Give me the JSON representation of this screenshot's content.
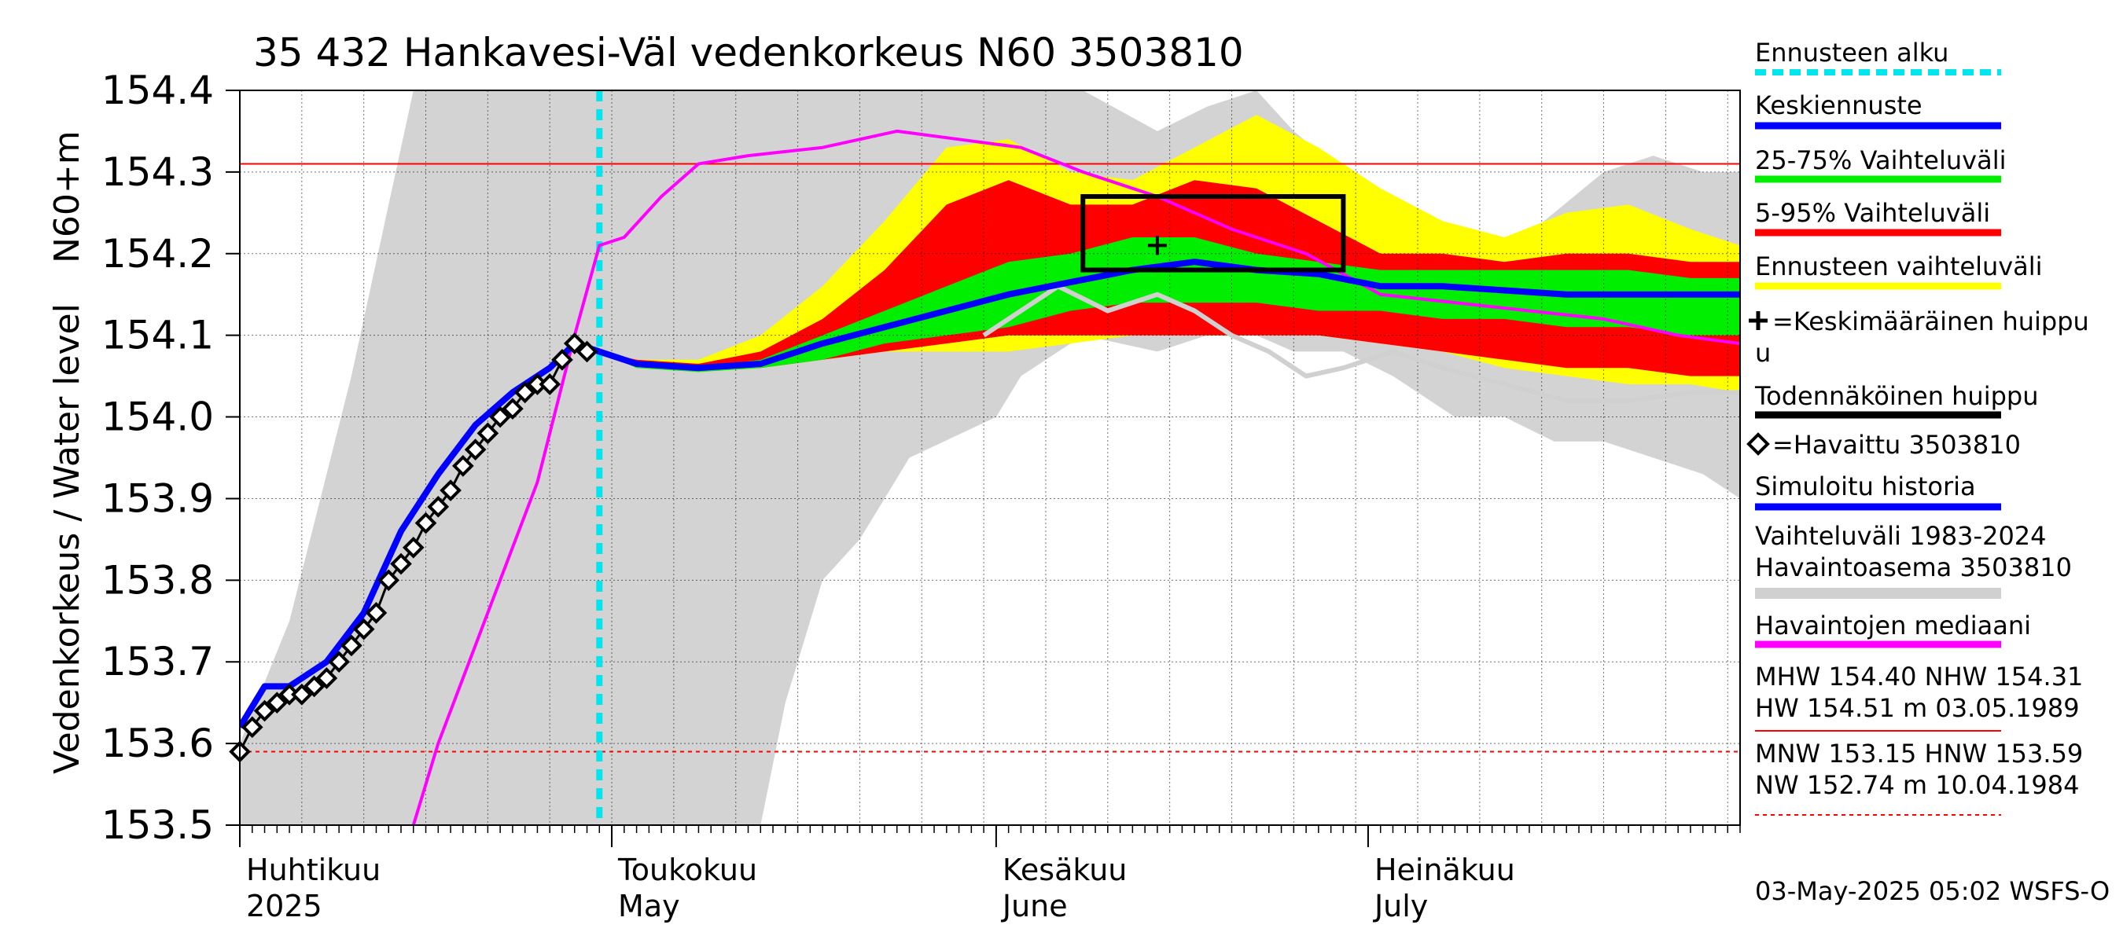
{
  "chart_data": {
    "type": "line",
    "title": "35 432 Hankavesi-Väl vedenkorkeus N60 3503810",
    "ylabel_top": "N60+m",
    "ylabel": "Vedenkorkeus / Water level",
    "ylim": [
      153.5,
      154.4
    ],
    "yticks": [
      153.5,
      153.6,
      153.7,
      153.8,
      153.9,
      154.0,
      154.1,
      154.2,
      154.3,
      154.4
    ],
    "x_start": "2025-04-01",
    "x_end": "2025-07-31",
    "forecast_start": "2025-04-30",
    "month_labels": [
      {
        "date": "2025-04-01",
        "fi": "Huhtikuu",
        "en": "2025"
      },
      {
        "date": "2025-05-01",
        "fi": "Toukokuu",
        "en": "May"
      },
      {
        "date": "2025-06-01",
        "fi": "Kesäkuu",
        "en": "June"
      },
      {
        "date": "2025-07-01",
        "fi": "Heinäkuu",
        "en": "July"
      }
    ],
    "reference_lines": {
      "MHW": 154.4,
      "NHW": 154.31,
      "HNW": 153.59
    },
    "peak_box": {
      "x0": "2025-06-08",
      "x1": "2025-06-29",
      "y0": 154.18,
      "y1": 154.27
    },
    "mean_peak": {
      "date": "2025-06-14",
      "value": 154.21
    },
    "history_band": {
      "x": [
        "2025-04-01",
        "2025-04-05",
        "2025-04-10",
        "2025-04-15",
        "2025-04-19",
        "2025-04-22",
        "2025-04-28",
        "2025-05-01",
        "2025-05-05",
        "2025-05-10",
        "2025-05-13",
        "2025-05-15",
        "2025-05-18",
        "2025-05-21",
        "2025-05-25",
        "2025-06-01",
        "2025-06-03",
        "2025-06-08",
        "2025-06-14",
        "2025-06-18",
        "2025-06-22",
        "2025-06-25",
        "2025-06-29",
        "2025-07-03",
        "2025-07-08",
        "2025-07-12",
        "2025-07-16",
        "2025-07-20",
        "2025-07-24",
        "2025-07-28",
        "2025-07-31"
      ],
      "hi": [
        153.6,
        153.75,
        154.05,
        154.4,
        154.4,
        154.4,
        154.4,
        154.4,
        154.4,
        154.4,
        154.4,
        154.4,
        154.4,
        154.4,
        154.4,
        154.4,
        154.4,
        154.4,
        154.35,
        154.38,
        154.4,
        154.35,
        154.3,
        154.26,
        154.2,
        154.2,
        154.25,
        154.3,
        154.32,
        154.3,
        154.3
      ],
      "lo": [
        153.5,
        153.5,
        153.5,
        153.5,
        153.5,
        153.5,
        153.5,
        153.5,
        153.5,
        153.5,
        153.5,
        153.65,
        153.8,
        153.85,
        153.95,
        154.0,
        154.05,
        154.1,
        154.08,
        154.1,
        154.1,
        154.08,
        154.08,
        154.05,
        154.0,
        154.0,
        153.97,
        153.97,
        153.95,
        153.93,
        153.9
      ]
    },
    "forecast_bands": {
      "x": [
        "2025-04-30",
        "2025-05-03",
        "2025-05-08",
        "2025-05-13",
        "2025-05-18",
        "2025-05-23",
        "2025-05-28",
        "2025-06-02",
        "2025-06-07",
        "2025-06-12",
        "2025-06-17",
        "2025-06-22",
        "2025-06-27",
        "2025-07-02",
        "2025-07-07",
        "2025-07-12",
        "2025-07-17",
        "2025-07-22",
        "2025-07-27",
        "2025-07-31"
      ],
      "yellow_hi": [
        154.08,
        154.07,
        154.07,
        154.1,
        154.16,
        154.24,
        154.33,
        154.34,
        154.3,
        154.29,
        154.33,
        154.37,
        154.33,
        154.28,
        154.24,
        154.22,
        154.25,
        154.26,
        154.23,
        154.21
      ],
      "yellow_lo": [
        154.08,
        154.065,
        154.055,
        154.06,
        154.07,
        154.08,
        154.08,
        154.08,
        154.09,
        154.1,
        154.1,
        154.1,
        154.1,
        154.09,
        154.08,
        154.06,
        154.05,
        154.04,
        154.04,
        154.03
      ],
      "red_hi": [
        154.08,
        154.07,
        154.065,
        154.08,
        154.12,
        154.18,
        154.26,
        154.29,
        154.26,
        154.26,
        154.29,
        154.28,
        154.24,
        154.2,
        154.2,
        154.19,
        154.2,
        154.2,
        154.19,
        154.19
      ],
      "red_lo": [
        154.08,
        154.065,
        154.06,
        154.06,
        154.07,
        154.08,
        154.09,
        154.1,
        154.1,
        154.1,
        154.1,
        154.1,
        154.1,
        154.09,
        154.08,
        154.07,
        154.06,
        154.06,
        154.05,
        154.05
      ],
      "green_hi": [
        154.08,
        154.065,
        154.06,
        154.07,
        154.1,
        154.13,
        154.16,
        154.19,
        154.2,
        154.22,
        154.22,
        154.2,
        154.19,
        154.18,
        154.18,
        154.18,
        154.18,
        154.18,
        154.17,
        154.17
      ],
      "green_lo": [
        154.08,
        154.06,
        154.055,
        154.06,
        154.07,
        154.09,
        154.1,
        154.11,
        154.13,
        154.14,
        154.14,
        154.14,
        154.13,
        154.13,
        154.12,
        154.12,
        154.11,
        154.11,
        154.1,
        154.1
      ]
    },
    "series": [
      {
        "name": "Keskiennuste",
        "color": "#0000ff",
        "x": [
          "2025-04-30",
          "2025-05-03",
          "2025-05-08",
          "2025-05-13",
          "2025-05-18",
          "2025-05-23",
          "2025-05-28",
          "2025-06-02",
          "2025-06-07",
          "2025-06-12",
          "2025-06-17",
          "2025-06-22",
          "2025-06-27",
          "2025-07-02",
          "2025-07-07",
          "2025-07-12",
          "2025-07-17",
          "2025-07-22",
          "2025-07-27",
          "2025-07-31"
        ],
        "y": [
          154.08,
          154.065,
          154.06,
          154.065,
          154.09,
          154.11,
          154.13,
          154.15,
          154.165,
          154.18,
          154.19,
          154.18,
          154.175,
          154.16,
          154.16,
          154.155,
          154.15,
          154.15,
          154.15,
          154.15
        ]
      },
      {
        "name": "Simuloitu historia",
        "color": "#0000ff",
        "x": [
          "2025-04-01",
          "2025-04-03",
          "2025-04-05",
          "2025-04-08",
          "2025-04-11",
          "2025-04-14",
          "2025-04-17",
          "2025-04-20",
          "2025-04-23",
          "2025-04-26",
          "2025-04-28",
          "2025-04-30"
        ],
        "y": [
          153.62,
          153.67,
          153.67,
          153.7,
          153.76,
          153.86,
          153.93,
          153.99,
          154.03,
          154.06,
          154.09,
          154.08
        ]
      },
      {
        "name": "Havaintojen mediaani",
        "color": "#ff00ff",
        "x": [
          "2025-04-15",
          "2025-04-17",
          "2025-04-19",
          "2025-04-22",
          "2025-04-25",
          "2025-04-28",
          "2025-04-30",
          "2025-05-02",
          "2025-05-05",
          "2025-05-08",
          "2025-05-12",
          "2025-05-18",
          "2025-05-24",
          "2025-05-29",
          "2025-06-03",
          "2025-06-08",
          "2025-06-14",
          "2025-06-20",
          "2025-06-26",
          "2025-07-02",
          "2025-07-08",
          "2025-07-14",
          "2025-07-20",
          "2025-07-26",
          "2025-07-31"
        ],
        "y": [
          153.5,
          153.6,
          153.68,
          153.8,
          153.92,
          154.1,
          154.21,
          154.22,
          154.27,
          154.31,
          154.32,
          154.33,
          154.35,
          154.34,
          154.33,
          154.3,
          154.27,
          154.23,
          154.2,
          154.15,
          154.14,
          154.13,
          154.12,
          154.1,
          154.09
        ]
      },
      {
        "name": "Havaitut",
        "color": "#000000",
        "x": [
          "2025-04-01",
          "2025-04-02",
          "2025-04-03",
          "2025-04-04",
          "2025-04-05",
          "2025-04-06",
          "2025-04-07",
          "2025-04-08",
          "2025-04-09",
          "2025-04-10",
          "2025-04-11",
          "2025-04-12",
          "2025-04-13",
          "2025-04-14",
          "2025-04-15",
          "2025-04-16",
          "2025-04-17",
          "2025-04-18",
          "2025-04-19",
          "2025-04-20",
          "2025-04-21",
          "2025-04-22",
          "2025-04-23",
          "2025-04-24",
          "2025-04-25",
          "2025-04-26",
          "2025-04-27",
          "2025-04-28",
          "2025-04-29"
        ],
        "y": [
          153.59,
          153.62,
          153.64,
          153.65,
          153.66,
          153.66,
          153.67,
          153.68,
          153.7,
          153.72,
          153.74,
          153.76,
          153.8,
          153.82,
          153.84,
          153.87,
          153.89,
          153.91,
          153.94,
          153.96,
          153.98,
          154.0,
          154.01,
          154.03,
          154.04,
          154.04,
          154.07,
          154.09,
          154.08
        ]
      },
      {
        "name": "Vaihteluväli kuvaaja",
        "color": "#d0d0d0",
        "x": [
          "2025-05-31",
          "2025-06-03",
          "2025-06-06",
          "2025-06-10",
          "2025-06-14",
          "2025-06-17",
          "2025-06-20",
          "2025-06-23",
          "2025-06-26",
          "2025-06-29",
          "2025-07-03",
          "2025-07-07",
          "2025-07-12",
          "2025-07-17",
          "2025-07-22",
          "2025-07-27",
          "2025-07-31"
        ],
        "y": [
          154.1,
          154.13,
          154.16,
          154.13,
          154.15,
          154.13,
          154.1,
          154.08,
          154.05,
          154.06,
          154.08,
          154.06,
          154.04,
          154.02,
          154.02,
          154.03,
          154.03
        ]
      }
    ],
    "legend": [
      {
        "key": "ennusteen_alku",
        "label": "Ennusteen alku",
        "color": "#00e5ee",
        "style": "dashed"
      },
      {
        "key": "keskiennuste",
        "label": "Keskiennuste",
        "color": "#0000ff",
        "style": "line"
      },
      {
        "key": "v25_75",
        "label": "25-75% Vaihteluväli",
        "color": "#00ee00",
        "style": "line"
      },
      {
        "key": "v5_95",
        "label": "5-95% Vaihteluväli",
        "color": "#ff0000",
        "style": "line"
      },
      {
        "key": "ennusteen_vaihteluvali",
        "label": "Ennusteen vaihteluväli",
        "color": "#ffff00",
        "style": "line"
      },
      {
        "key": "keskim_huippu",
        "label": "=Keskimääräinen huippu",
        "label2": "u",
        "color": "#000000",
        "style": "plus"
      },
      {
        "key": "todennakoinen_huippu",
        "label": "Todennäköinen huippu",
        "color": "#000000",
        "style": "line"
      },
      {
        "key": "havaittu",
        "label": "=Havaittu 3503810",
        "color": "#000000",
        "style": "diamond"
      },
      {
        "key": "simuloitu",
        "label": "Simuloitu historia",
        "color": "#0000ff",
        "style": "line"
      },
      {
        "key": "vaihteluvali_hist",
        "label": "Vaihteluväli 1983-2024",
        "label2": " Havaintoasema 3503810",
        "color": "#d0d0d0",
        "style": "line"
      },
      {
        "key": "mediaani",
        "label": "Havaintojen mediaani",
        "color": "#ff00ff",
        "style": "line"
      },
      {
        "key": "mhw",
        "label": "MHW 154.40 NHW 154.31",
        "label2": "HW 154.51 m 03.05.1989",
        "color": "#ff0000",
        "style": "thin"
      },
      {
        "key": "mnw",
        "label": "MNW 153.15 HNW 153.59",
        "label2": "NW 152.74 m 10.04.1984",
        "color": "#ff0000",
        "style": "dashed-thin"
      }
    ],
    "footer": "03-May-2025 05:02 WSFS-O"
  }
}
